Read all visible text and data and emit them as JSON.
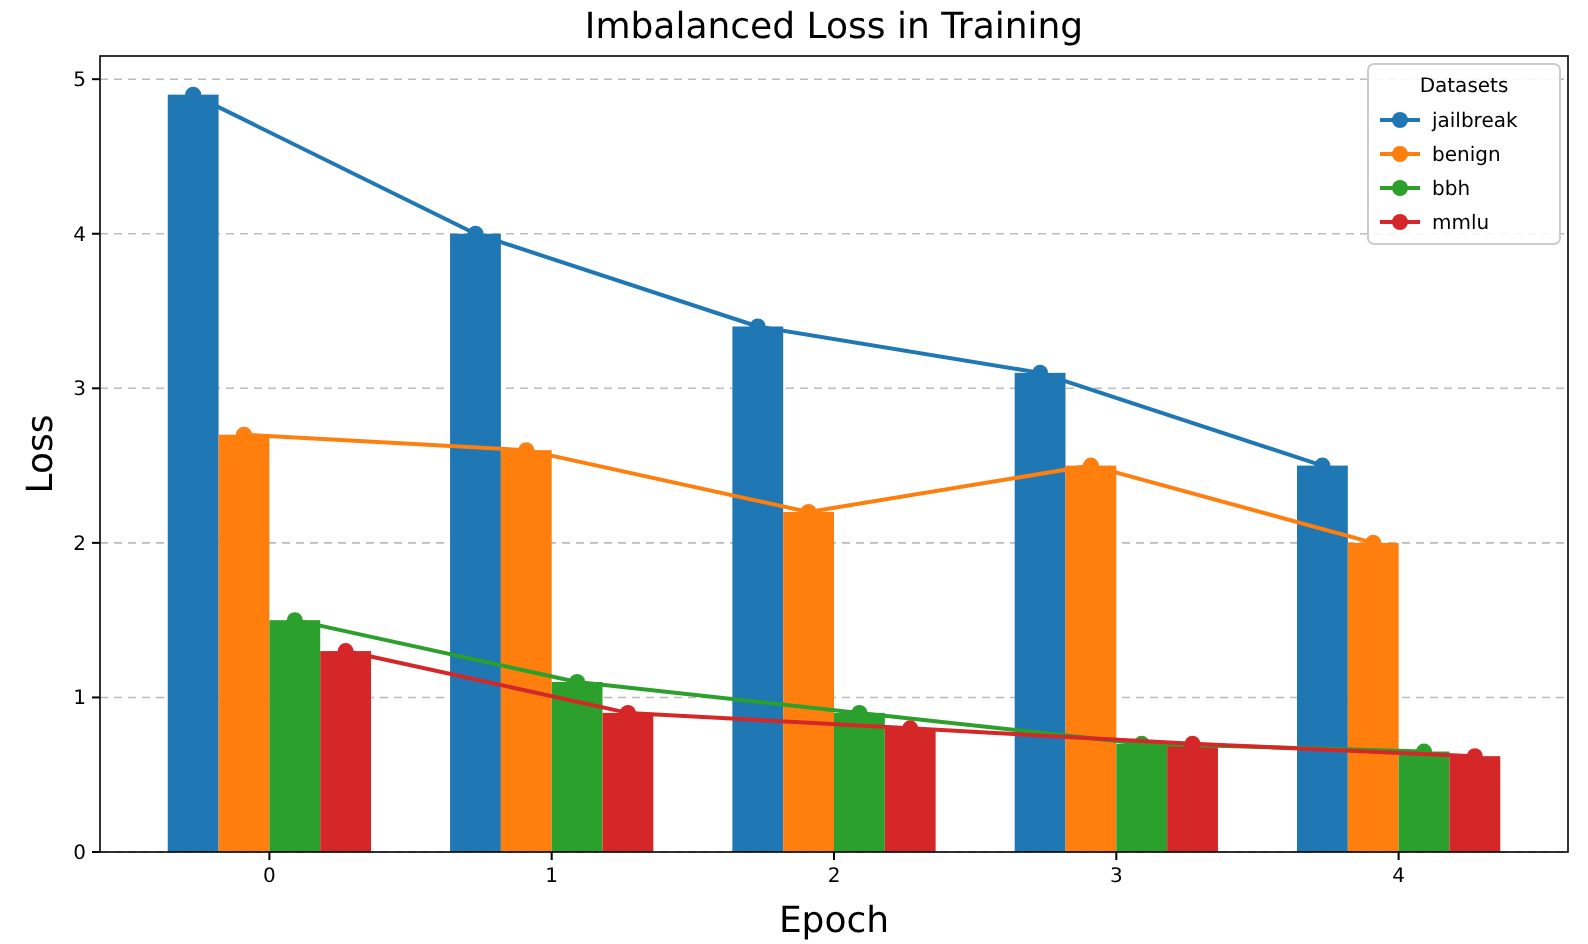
{
  "chart_data": {
    "type": "bar",
    "title": "Imbalanced Loss in Training",
    "xlabel": "Epoch",
    "ylabel": "Loss",
    "legend_title": "Datasets",
    "categories": [
      "0",
      "1",
      "2",
      "3",
      "4"
    ],
    "series": [
      {
        "color": "#1f77b4",
        "values": [
          4.9,
          4.0,
          3.4,
          3.1,
          2.5
        ]
      },
      {
        "color": "#ff7f0e",
        "values": [
          2.7,
          2.6,
          2.2,
          2.5,
          2.0
        ]
      },
      {
        "color": "#2ca02c",
        "values": [
          1.5,
          1.1,
          0.9,
          0.7,
          0.65
        ]
      },
      {
        "color": "#d62728",
        "values": [
          1.3,
          0.9,
          0.8,
          0.7,
          0.62
        ]
      },
      {
        "type": "line",
        "name": "jailbreak",
        "color": "#1f77b4",
        "values": [
          4.9,
          4.0,
          3.4,
          3.1,
          2.5
        ]
      },
      {
        "type": "line",
        "name": "benign",
        "color": "#ff7f0e",
        "values": [
          2.7,
          2.6,
          2.2,
          2.5,
          2.0
        ]
      },
      {
        "type": "line",
        "name": "bbh",
        "color": "#2ca02c",
        "values": [
          1.5,
          1.1,
          0.9,
          0.7,
          0.65
        ]
      },
      {
        "type": "line",
        "name": "mmlu",
        "color": "#d62728",
        "values": [
          1.3,
          0.9,
          0.8,
          0.7,
          0.62
        ]
      }
    ],
    "ylim": [
      0,
      5.15
    ],
    "yticks": [
      0,
      1,
      2,
      3,
      4,
      5
    ],
    "grid": "y",
    "legend": "top right",
    "marker": "circle",
    "line_style": "solid"
  }
}
